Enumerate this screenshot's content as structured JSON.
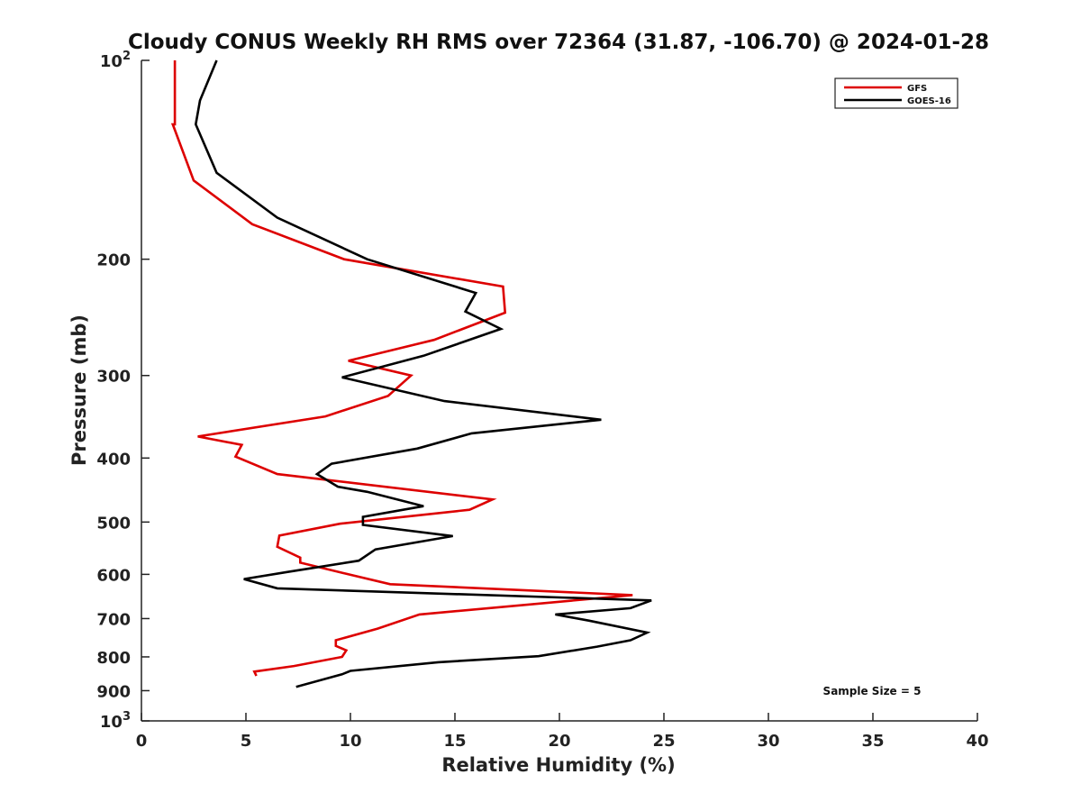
{
  "chart_data": {
    "type": "line",
    "title": "Cloudy CONUS Weekly RH RMS over 72364 (31.87, -106.70) @ 2024-01-28",
    "xlabel": "Relative Humidity (%)",
    "ylabel": "Pressure (mb)",
    "xlim": [
      0,
      40
    ],
    "ylim": [
      100,
      1000
    ],
    "y_scale": "log",
    "y_inverted": true,
    "grid": false,
    "legend_position": "top-right",
    "x_ticks": [
      "0",
      "5",
      "10",
      "15",
      "20",
      "25",
      "30",
      "35",
      "40"
    ],
    "y_ticks": [
      {
        "value": 100,
        "base": "10",
        "exp": "2"
      },
      {
        "value": 200,
        "label": "200"
      },
      {
        "value": 300,
        "label": "300"
      },
      {
        "value": 400,
        "label": "400"
      },
      {
        "value": 500,
        "label": "500"
      },
      {
        "value": 600,
        "label": "600"
      },
      {
        "value": 700,
        "label": "700"
      },
      {
        "value": 800,
        "label": "800"
      },
      {
        "value": 900,
        "label": "900"
      },
      {
        "value": 1000,
        "base": "10",
        "exp": "3"
      }
    ],
    "annotation": "Sample Size = 5",
    "series": [
      {
        "name": "GFS",
        "color": "#dd0000",
        "points": [
          [
            1.6,
            100
          ],
          [
            1.6,
            125
          ],
          [
            1.5,
            125
          ],
          [
            2.5,
            152
          ],
          [
            5.3,
            177
          ],
          [
            9.7,
            200
          ],
          [
            17.3,
            220
          ],
          [
            17.4,
            241
          ],
          [
            14.0,
            265
          ],
          [
            9.9,
            285
          ],
          [
            12.9,
            300
          ],
          [
            11.8,
            322
          ],
          [
            8.8,
            346
          ],
          [
            2.7,
            371
          ],
          [
            4.8,
            382
          ],
          [
            4.5,
            398
          ],
          [
            6.5,
            423
          ],
          [
            16.8,
            462
          ],
          [
            15.7,
            479
          ],
          [
            9.5,
            503
          ],
          [
            6.6,
            524
          ],
          [
            6.5,
            545
          ],
          [
            7.6,
            566
          ],
          [
            7.6,
            576
          ],
          [
            10.1,
            602
          ],
          [
            11.9,
            621
          ],
          [
            23.5,
            645
          ],
          [
            13.3,
            690
          ],
          [
            11.3,
            725
          ],
          [
            9.3,
            755
          ],
          [
            9.3,
            770
          ],
          [
            9.8,
            782
          ],
          [
            9.6,
            800
          ],
          [
            7.3,
            826
          ],
          [
            5.4,
            842
          ],
          [
            5.5,
            855
          ]
        ]
      },
      {
        "name": "GOES-16",
        "color": "#000000",
        "points": [
          [
            3.6,
            100
          ],
          [
            2.8,
            115
          ],
          [
            2.6,
            125
          ],
          [
            3.6,
            148
          ],
          [
            6.5,
            173
          ],
          [
            10.8,
            200
          ],
          [
            16.0,
            225
          ],
          [
            15.5,
            240
          ],
          [
            17.2,
            255
          ],
          [
            13.5,
            280
          ],
          [
            9.6,
            302
          ],
          [
            14.5,
            328
          ],
          [
            22.0,
            350
          ],
          [
            15.8,
            367
          ],
          [
            13.2,
            387
          ],
          [
            9.1,
            408
          ],
          [
            8.4,
            423
          ],
          [
            9.4,
            442
          ],
          [
            10.8,
            450
          ],
          [
            13.5,
            473
          ],
          [
            10.6,
            491
          ],
          [
            10.6,
            505
          ],
          [
            14.9,
            525
          ],
          [
            11.2,
            550
          ],
          [
            10.4,
            572
          ],
          [
            7.0,
            595
          ],
          [
            4.9,
            610
          ],
          [
            6.5,
            630
          ],
          [
            24.4,
            657
          ],
          [
            23.4,
            675
          ],
          [
            19.8,
            690
          ],
          [
            21.4,
            705
          ],
          [
            24.2,
            735
          ],
          [
            23.4,
            755
          ],
          [
            21.8,
            772
          ],
          [
            19.0,
            798
          ],
          [
            14.2,
            815
          ],
          [
            10.0,
            840
          ],
          [
            9.6,
            850
          ],
          [
            7.4,
            888
          ]
        ]
      }
    ]
  }
}
